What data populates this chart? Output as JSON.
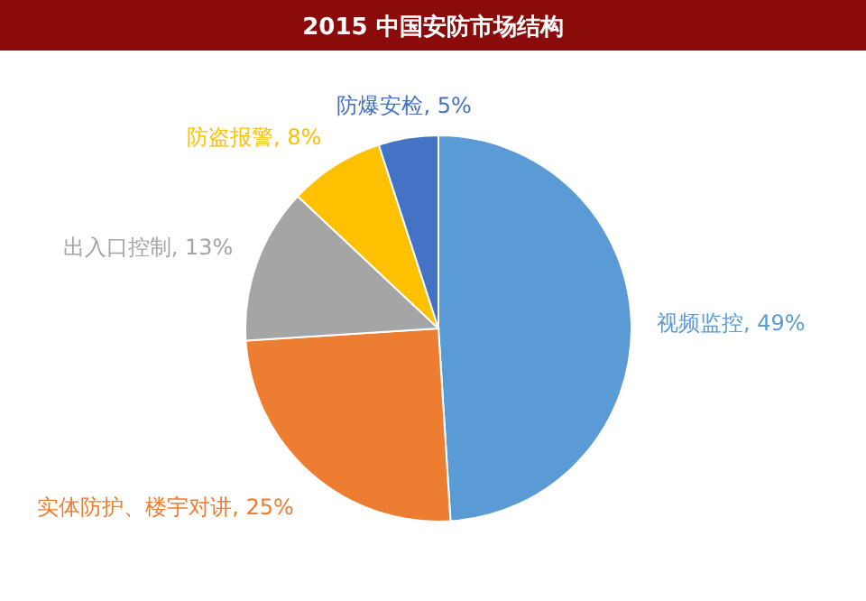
{
  "chart_data": {
    "type": "pie",
    "title": "2015 中国安防市场结构",
    "categories": [
      "视频监控",
      "实体防护、楼宇对讲",
      "出入口控制",
      "防盗报警",
      "防爆安检"
    ],
    "values": [
      49,
      25,
      13,
      8,
      5
    ],
    "value_labels": [
      "49%",
      "25%",
      "13%",
      "8%",
      "5%"
    ],
    "colors": [
      "#5b9bd5",
      "#ed7d31",
      "#a5a5a5",
      "#ffc000",
      "#4472c4"
    ],
    "legend": false
  }
}
